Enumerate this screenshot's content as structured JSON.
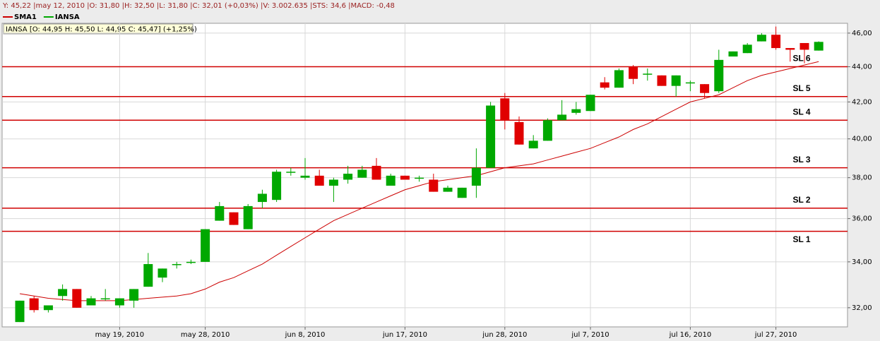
{
  "chart_data": {
    "type": "candlestick",
    "status_bar": "Y: 45,22 |may 12, 2010 |O: 31,80 |H: 32,50 |L: 31,80 |C: 32,01 (+0,03%) |V: 3.002.635 |STS: 34,6 |MACD: -0,48",
    "info_box": "IANSA [O: 44,95  H: 45,50  L: 44,95  C: 45,47] (+1,25%)",
    "categories": [
      null,
      null,
      null,
      null,
      null,
      null,
      null,
      "may 19, 2010",
      null,
      null,
      null,
      null,
      null,
      "may 28, 2010",
      null,
      null,
      null,
      null,
      null,
      null,
      "jun 8, 2010",
      null,
      null,
      null,
      null,
      null,
      null,
      "jun 17, 2010",
      null,
      null,
      null,
      null,
      null,
      null,
      "jun 28, 2010",
      null,
      null,
      null,
      null,
      null,
      "jul 7, 2010",
      null,
      null,
      null,
      null,
      null,
      null,
      "jul 16, 2010",
      null,
      null,
      null,
      null,
      null,
      "jul 27, 2010",
      null,
      null,
      null
    ],
    "series": [
      {
        "name": "SMA1",
        "color": "#cc0000",
        "values": [
          32.6,
          32.5,
          32.4,
          32.35,
          32.3,
          32.3,
          32.3,
          32.3,
          32.35,
          32.4,
          32.45,
          32.5,
          32.6,
          32.8,
          33.1,
          33.3,
          33.6,
          33.9,
          34.3,
          34.7,
          35.1,
          35.5,
          35.9,
          36.2,
          36.5,
          36.8,
          37.1,
          37.4,
          37.6,
          37.8,
          37.9,
          38.0,
          38.1,
          38.3,
          38.5,
          38.6,
          38.7,
          38.9,
          39.1,
          39.3,
          39.5,
          39.8,
          40.1,
          40.5,
          40.8,
          41.2,
          41.6,
          42.0,
          42.2,
          42.4,
          42.8,
          43.2,
          43.5,
          43.7,
          43.9,
          44.1,
          44.3
        ]
      },
      {
        "name": "IANSA",
        "color": "#00a800",
        "down_color": "#e00000",
        "open": [
          31.4,
          32.4,
          31.9,
          32.5,
          32.8,
          32.1,
          32.4,
          32.1,
          32.3,
          32.9,
          33.3,
          33.9,
          34.0,
          34.0,
          35.9,
          36.3,
          35.5,
          36.8,
          36.9,
          38.3,
          38.0,
          38.1,
          37.6,
          37.9,
          38.0,
          38.6,
          37.6,
          38.1,
          38.0,
          37.9,
          37.3,
          37.0,
          37.6,
          38.5,
          42.2,
          40.9,
          39.5,
          39.9,
          41.0,
          41.4,
          41.5,
          43.1,
          42.8,
          44.0,
          43.6,
          43.5,
          42.9,
          43.1,
          43.0,
          42.6,
          44.6,
          44.8,
          45.5,
          45.9,
          45.1,
          45.4,
          44.95
        ],
        "high": [
          32.3,
          32.5,
          32.1,
          33.0,
          32.8,
          32.5,
          32.8,
          32.4,
          32.8,
          34.4,
          33.7,
          34.0,
          34.1,
          35.5,
          36.8,
          36.3,
          36.7,
          37.4,
          38.4,
          38.5,
          39.0,
          38.4,
          38.0,
          38.6,
          38.6,
          39.0,
          38.2,
          38.1,
          38.1,
          38.2,
          37.6,
          37.5,
          39.5,
          42.0,
          42.5,
          41.2,
          40.2,
          41.1,
          42.1,
          42.0,
          42.4,
          43.4,
          43.9,
          44.1,
          43.9,
          43.5,
          43.5,
          43.2,
          43.0,
          45.0,
          44.9,
          45.4,
          46.0,
          46.4,
          45.1,
          45.4,
          45.5
        ],
        "low": [
          31.4,
          31.8,
          31.8,
          32.3,
          32.0,
          32.1,
          32.3,
          32.0,
          32.0,
          32.9,
          33.1,
          33.7,
          33.9,
          34.0,
          35.9,
          35.7,
          35.5,
          36.5,
          36.8,
          38.1,
          37.9,
          37.6,
          36.8,
          37.7,
          38.0,
          37.9,
          37.6,
          37.9,
          37.8,
          37.3,
          37.3,
          37.0,
          37.0,
          38.5,
          40.5,
          39.7,
          39.5,
          39.9,
          41.0,
          41.3,
          41.5,
          42.7,
          42.8,
          43.0,
          43.2,
          42.9,
          42.3,
          42.6,
          42.2,
          42.5,
          44.6,
          44.8,
          45.5,
          45.0,
          44.3,
          44.2,
          44.95
        ],
        "close": [
          32.3,
          31.9,
          32.1,
          32.8,
          32.0,
          32.4,
          32.4,
          32.4,
          32.8,
          33.9,
          33.7,
          33.9,
          34.0,
          35.5,
          36.6,
          35.7,
          36.6,
          37.2,
          38.3,
          38.3,
          38.1,
          37.6,
          37.9,
          38.2,
          38.4,
          37.9,
          38.1,
          37.9,
          38.0,
          37.3,
          37.5,
          37.5,
          38.5,
          41.8,
          41.0,
          39.7,
          39.9,
          41.0,
          41.3,
          41.6,
          42.4,
          42.8,
          43.8,
          43.3,
          43.6,
          42.9,
          43.5,
          43.1,
          42.5,
          44.4,
          44.9,
          45.3,
          45.9,
          45.1,
          45.0,
          45.0,
          45.47
        ]
      }
    ],
    "levels": [
      {
        "label": "SL 6",
        "value": 44.0
      },
      {
        "label": "SL 5",
        "value": 42.3
      },
      {
        "label": "SL 4",
        "value": 41.0
      },
      {
        "label": "SL 3",
        "value": 38.5
      },
      {
        "label": "SL 2",
        "value": 36.5
      },
      {
        "label": "SL 1",
        "value": 35.4
      }
    ],
    "level_color": "#d00000",
    "ylim": [
      31.2,
      46.6
    ],
    "log_scale": true,
    "yticks": [
      {
        "value": 32,
        "label": "32,00"
      },
      {
        "value": 34,
        "label": "34,00"
      },
      {
        "value": 36,
        "label": "36,00"
      },
      {
        "value": 38,
        "label": "38,00"
      },
      {
        "value": 40,
        "label": "40,00"
      },
      {
        "value": 42,
        "label": "42,00"
      },
      {
        "value": 44,
        "label": "44,00"
      },
      {
        "value": 46,
        "label": "46,00"
      }
    ],
    "grid": true
  }
}
